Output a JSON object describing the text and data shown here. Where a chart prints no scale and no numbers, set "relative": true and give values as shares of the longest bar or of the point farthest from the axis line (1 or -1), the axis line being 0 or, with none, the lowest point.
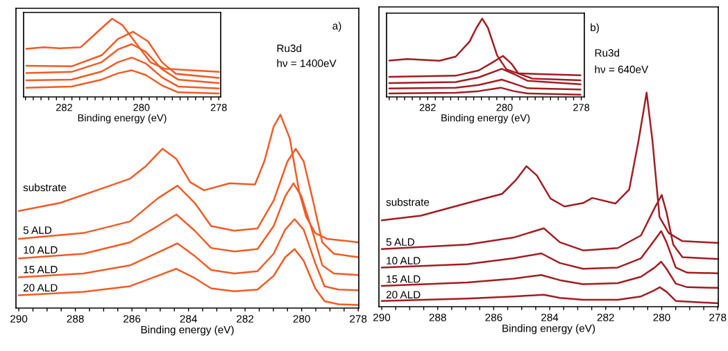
{
  "chart_data": [
    {
      "type": "line",
      "relative": true,
      "xlabel": "Binding energy (eV)",
      "xlim": [
        290.1,
        277.98
      ],
      "xticks": [
        290,
        {
          "value": 289.5,
          "label": null
        },
        288,
        {
          "value": 288.5,
          "label": null
        },
        {
          "value": 289,
          "label": null
        },
        {
          "value": 287.5,
          "label": null
        },
        286,
        {
          "value": 287,
          "label": null
        },
        {
          "value": 286.5,
          "label": null
        },
        {
          "value": 285.5,
          "label": null
        },
        284,
        {
          "value": 285,
          "label": null
        },
        {
          "value": 284.5,
          "label": null
        },
        {
          "value": 283.5,
          "label": null
        },
        282,
        {
          "value": 283,
          "label": null
        },
        {
          "value": 282.5,
          "label": null
        },
        {
          "value": 281.5,
          "label": null
        },
        280,
        {
          "value": 281,
          "label": null
        },
        {
          "value": 280.5,
          "label": null
        },
        {
          "value": 279.5,
          "label": null
        },
        278,
        {
          "value": 279,
          "label": null
        },
        {
          "value": 278.5,
          "label": null
        }
      ],
      "annotations": [
        "a)",
        "Ru3d",
        "hν = 1400eV"
      ],
      "grid": false,
      "legend": false,
      "series": [
        {
          "name": "substrate",
          "color": "#f25a24",
          "x": [
            290,
            288.53,
            286.89,
            286.07,
            285.5,
            284.92,
            284.43,
            283.94,
            283.45,
            282.55,
            281.65,
            281.32,
            280.99,
            280.75,
            280.42,
            280.09,
            279.84,
            279.52,
            279.11,
            278.0
          ],
          "values": [
            0.502,
            0.544,
            0.627,
            0.669,
            0.735,
            0.824,
            0.771,
            0.651,
            0.609,
            0.645,
            0.639,
            0.759,
            0.938,
            1.0,
            0.878,
            0.603,
            0.472,
            0.388,
            0.358,
            0.34
          ]
        },
        {
          "name": "5 ALD",
          "color": "#f25a24",
          "x": [
            290,
            287.71,
            286.07,
            285.09,
            284.39,
            283.78,
            283.2,
            282.38,
            281.56,
            280.99,
            280.5,
            280.21,
            279.93,
            279.6,
            279.27,
            278.86,
            278.0
          ],
          "values": [
            0.358,
            0.388,
            0.448,
            0.567,
            0.633,
            0.544,
            0.424,
            0.4,
            0.412,
            0.556,
            0.759,
            0.824,
            0.759,
            0.556,
            0.34,
            0.281,
            0.263
          ]
        },
        {
          "name": "10 ALD",
          "color": "#f25a24",
          "x": [
            290,
            287.71,
            286.07,
            285.09,
            284.43,
            283.78,
            283.2,
            282.38,
            281.56,
            280.99,
            280.58,
            280.29,
            280.01,
            279.6,
            279.27,
            278.86,
            278.0
          ],
          "values": [
            0.257,
            0.281,
            0.34,
            0.424,
            0.484,
            0.4,
            0.311,
            0.293,
            0.305,
            0.424,
            0.579,
            0.645,
            0.579,
            0.388,
            0.221,
            0.179,
            0.171
          ]
        },
        {
          "name": "15 ALD",
          "color": "#f25a24",
          "x": [
            290,
            287.71,
            286.07,
            285.09,
            284.39,
            283.78,
            283.2,
            282.38,
            281.56,
            280.99,
            280.58,
            280.25,
            279.93,
            279.52,
            279.19,
            278.7,
            278.0
          ],
          "values": [
            0.159,
            0.179,
            0.221,
            0.287,
            0.335,
            0.269,
            0.197,
            0.179,
            0.191,
            0.281,
            0.406,
            0.46,
            0.406,
            0.233,
            0.113,
            0.096,
            0.092
          ]
        },
        {
          "name": "20 ALD",
          "color": "#f25a24",
          "x": [
            290,
            287.71,
            286.07,
            285.09,
            284.43,
            283.78,
            283.2,
            282.38,
            281.56,
            280.99,
            280.58,
            280.25,
            279.93,
            279.52,
            279.19,
            278.7,
            278.0
          ],
          "values": [
            0.066,
            0.084,
            0.113,
            0.167,
            0.203,
            0.155,
            0.102,
            0.087,
            0.096,
            0.167,
            0.263,
            0.305,
            0.245,
            0.102,
            0.036,
            0.02,
            0.016
          ]
        }
      ]
    },
    {
      "type": "line",
      "relative": true,
      "xlabel": "Binding energy (eV)",
      "xlim": [
        283.05,
        277.95
      ],
      "xticks": [
        {
          "value": 283,
          "label": null
        },
        {
          "value": 282.8,
          "label": null
        },
        {
          "value": 282.6,
          "label": null
        },
        {
          "value": 282.4,
          "label": null
        },
        {
          "value": 282.2,
          "label": null
        },
        282,
        {
          "value": 281.8,
          "label": null
        },
        {
          "value": 281.6,
          "label": null
        },
        {
          "value": 281.4,
          "label": null
        },
        {
          "value": 281.2,
          "label": null
        },
        {
          "value": 281,
          "label": null
        },
        {
          "value": 280.8,
          "label": null
        },
        {
          "value": 280.6,
          "label": null
        },
        {
          "value": 280.4,
          "label": null
        },
        {
          "value": 280.2,
          "label": null
        },
        280,
        {
          "value": 279.8,
          "label": null
        },
        {
          "value": 279.6,
          "label": null
        },
        {
          "value": 279.4,
          "label": null
        },
        {
          "value": 279.2,
          "label": null
        },
        {
          "value": 279,
          "label": null
        },
        {
          "value": 278.8,
          "label": null
        },
        {
          "value": 278.6,
          "label": null
        },
        {
          "value": 278.4,
          "label": null
        },
        {
          "value": 278.2,
          "label": null
        },
        278
      ],
      "grid": false,
      "legend": false,
      "series": [
        {
          "color": "#f25a24",
          "x": [
            282.98,
            282.53,
            282.11,
            281.57,
            281.21,
            280.76,
            280.49,
            280.13,
            279.77,
            279.41,
            278.0
          ],
          "values": [
            0.615,
            0.636,
            0.621,
            0.636,
            0.799,
            1.0,
            0.917,
            0.68,
            0.444,
            0.361,
            0.32
          ]
        },
        {
          "color": "#f25a24",
          "x": [
            282.98,
            281.81,
            281.03,
            280.61,
            280.22,
            279.83,
            279.47,
            279.11,
            278.0
          ],
          "values": [
            0.399,
            0.391,
            0.533,
            0.74,
            0.834,
            0.71,
            0.444,
            0.296,
            0.243
          ]
        },
        {
          "color": "#f25a24",
          "x": [
            282.98,
            281.81,
            281.03,
            280.61,
            280.25,
            279.89,
            279.47,
            279.05,
            278.0
          ],
          "values": [
            0.305,
            0.32,
            0.444,
            0.607,
            0.675,
            0.577,
            0.355,
            0.222,
            0.178
          ]
        },
        {
          "color": "#f25a24",
          "x": [
            282.98,
            281.81,
            281.03,
            280.61,
            280.25,
            279.89,
            279.47,
            279.05,
            278.0
          ],
          "values": [
            0.213,
            0.222,
            0.325,
            0.444,
            0.503,
            0.429,
            0.251,
            0.133,
            0.109
          ]
        },
        {
          "color": "#f25a24",
          "x": [
            282.98,
            281.81,
            281.03,
            280.61,
            280.25,
            279.89,
            279.47,
            279.05,
            278.0
          ],
          "values": [
            0.118,
            0.133,
            0.222,
            0.302,
            0.34,
            0.281,
            0.148,
            0.059,
            0.044
          ]
        }
      ]
    },
    {
      "type": "line",
      "relative": true,
      "xlabel": "Binding energy (eV)",
      "xlim": [
        290.1,
        277.98
      ],
      "xticks": [
        290,
        {
          "value": 289.5,
          "label": null
        },
        288,
        {
          "value": 288.5,
          "label": null
        },
        {
          "value": 289,
          "label": null
        },
        {
          "value": 287.5,
          "label": null
        },
        286,
        {
          "value": 287,
          "label": null
        },
        {
          "value": 286.5,
          "label": null
        },
        {
          "value": 285.5,
          "label": null
        },
        284,
        {
          "value": 285,
          "label": null
        },
        {
          "value": 284.5,
          "label": null
        },
        {
          "value": 283.5,
          "label": null
        },
        282,
        {
          "value": 283,
          "label": null
        },
        {
          "value": 282.5,
          "label": null
        },
        {
          "value": 281.5,
          "label": null
        },
        280,
        {
          "value": 281,
          "label": null
        },
        {
          "value": 280.5,
          "label": null
        },
        {
          "value": 279.5,
          "label": null
        },
        278,
        {
          "value": 279,
          "label": null
        },
        {
          "value": 278.5,
          "label": null
        }
      ],
      "annotations": [
        "b)",
        "Ru3d",
        "hν = 640eV"
      ],
      "grid": false,
      "legend": false,
      "series": [
        {
          "name": "substrate",
          "color": "#a11d22",
          "x": [
            290,
            288.6,
            286.94,
            285.7,
            285.21,
            284.83,
            284.46,
            283.97,
            283.47,
            282.81,
            282.48,
            281.65,
            281.16,
            280.83,
            280.54,
            280.33,
            280.08,
            279.75,
            279.26,
            278.0
          ],
          "values": [
            0.403,
            0.425,
            0.484,
            0.527,
            0.591,
            0.656,
            0.613,
            0.505,
            0.468,
            0.484,
            0.508,
            0.482,
            0.548,
            0.774,
            1.0,
            0.774,
            0.419,
            0.344,
            0.306,
            0.298
          ]
        },
        {
          "name": "5 ALD",
          "color": "#a11d22",
          "x": [
            290,
            286.94,
            285.29,
            284.21,
            283.64,
            282.81,
            281.57,
            280.74,
            280.25,
            280.0,
            279.83,
            279.59,
            279.26,
            278.0
          ],
          "values": [
            0.269,
            0.29,
            0.323,
            0.366,
            0.301,
            0.263,
            0.274,
            0.333,
            0.462,
            0.522,
            0.441,
            0.29,
            0.231,
            0.223
          ]
        },
        {
          "name": "10 ALD",
          "color": "#a11d22",
          "x": [
            290,
            286.94,
            285.29,
            284.3,
            283.64,
            282.81,
            281.57,
            280.74,
            280.25,
            280.02,
            279.83,
            279.5,
            279.09,
            278.0
          ],
          "values": [
            0.183,
            0.199,
            0.226,
            0.249,
            0.204,
            0.177,
            0.183,
            0.226,
            0.312,
            0.353,
            0.301,
            0.183,
            0.159,
            0.156
          ]
        },
        {
          "name": "15 ALD",
          "color": "#a11d22",
          "x": [
            290,
            286.94,
            285.29,
            284.3,
            283.64,
            282.81,
            281.57,
            280.74,
            280.25,
            280.02,
            279.83,
            279.5,
            279.09,
            278.0
          ],
          "values": [
            0.097,
            0.113,
            0.131,
            0.148,
            0.124,
            0.105,
            0.11,
            0.14,
            0.183,
            0.21,
            0.177,
            0.108,
            0.091,
            0.088
          ]
        },
        {
          "name": "20 ALD",
          "color": "#a11d22",
          "x": [
            290,
            286.94,
            285.29,
            284.21,
            283.64,
            282.81,
            281.57,
            280.74,
            280.29,
            280.07,
            279.83,
            279.5,
            278.0
          ],
          "values": [
            0.027,
            0.038,
            0.048,
            0.056,
            0.041,
            0.032,
            0.032,
            0.048,
            0.075,
            0.091,
            0.07,
            0.027,
            0.016
          ]
        }
      ]
    },
    {
      "type": "line",
      "relative": true,
      "xlabel": "Binding energy (eV)",
      "xlim": [
        283.07,
        277.92
      ],
      "xticks": [
        {
          "value": 283,
          "label": null
        },
        {
          "value": 282.8,
          "label": null
        },
        {
          "value": 282.6,
          "label": null
        },
        {
          "value": 282.4,
          "label": null
        },
        {
          "value": 282.2,
          "label": null
        },
        282,
        {
          "value": 281.8,
          "label": null
        },
        {
          "value": 281.6,
          "label": null
        },
        {
          "value": 281.4,
          "label": null
        },
        {
          "value": 281.2,
          "label": null
        },
        {
          "value": 281,
          "label": null
        },
        {
          "value": 280.8,
          "label": null
        },
        {
          "value": 280.6,
          "label": null
        },
        {
          "value": 280.4,
          "label": null
        },
        {
          "value": 280.2,
          "label": null
        },
        280,
        {
          "value": 279.8,
          "label": null
        },
        {
          "value": 279.6,
          "label": null
        },
        {
          "value": 279.4,
          "label": null
        },
        {
          "value": 279.2,
          "label": null
        },
        {
          "value": 279,
          "label": null
        },
        {
          "value": 278.8,
          "label": null
        },
        {
          "value": 278.6,
          "label": null
        },
        {
          "value": 278.4,
          "label": null
        },
        {
          "value": 278.2,
          "label": null
        },
        278
      ],
      "grid": false,
      "legend": false,
      "series": [
        {
          "color": "#a11d22",
          "x": [
            283.0,
            282.53,
            281.69,
            281.27,
            280.91,
            280.73,
            280.58,
            280.43,
            280.19,
            279.95,
            279.64,
            278.02
          ],
          "values": [
            0.465,
            0.485,
            0.462,
            0.515,
            0.706,
            0.882,
            1.0,
            0.882,
            0.529,
            0.353,
            0.3,
            0.276
          ]
        },
        {
          "color": "#a11d22",
          "x": [
            283.0,
            281.27,
            280.67,
            280.31,
            280.04,
            279.82,
            279.64,
            279.28,
            278.02
          ],
          "values": [
            0.256,
            0.271,
            0.338,
            0.441,
            0.524,
            0.426,
            0.3,
            0.235,
            0.212
          ]
        },
        {
          "color": "#a11d22",
          "x": [
            283.0,
            281.27,
            280.67,
            280.07,
            279.76,
            279.4,
            278.02
          ],
          "values": [
            0.176,
            0.191,
            0.25,
            0.359,
            0.294,
            0.206,
            0.162
          ]
        },
        {
          "color": "#a11d22",
          "x": [
            283.0,
            281.27,
            280.67,
            280.07,
            279.76,
            279.4,
            278.02
          ],
          "values": [
            0.109,
            0.118,
            0.153,
            0.221,
            0.171,
            0.112,
            0.094
          ]
        },
        {
          "color": "#a11d22",
          "x": [
            283.0,
            281.27,
            280.67,
            280.1,
            279.76,
            279.4,
            278.02
          ],
          "values": [
            0.044,
            0.053,
            0.074,
            0.118,
            0.074,
            0.044,
            0.029
          ]
        }
      ]
    }
  ]
}
